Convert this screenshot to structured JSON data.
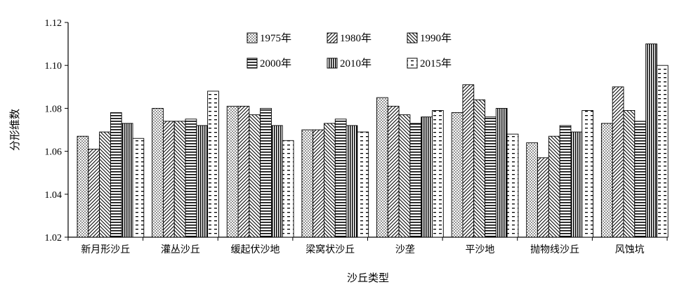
{
  "chart_data": {
    "type": "bar",
    "xlabel": "沙丘类型",
    "ylabel": "分形维数",
    "ylim": [
      1.02,
      1.12
    ],
    "yticks": [
      "1.02",
      "1.04",
      "1.06",
      "1.08",
      "1.10",
      "1.12"
    ],
    "grid": false,
    "legend_position": "top-center",
    "categories": [
      "新月形沙丘",
      "灌丛沙丘",
      "缓起伏沙地",
      "梁窝状沙丘",
      "沙垄",
      "平沙地",
      "抛物线沙丘",
      "风蚀坑"
    ],
    "series": [
      {
        "name": "1975年",
        "pattern": "dots",
        "values": [
          1.067,
          1.08,
          1.081,
          1.07,
          1.085,
          1.078,
          1.064,
          1.073
        ]
      },
      {
        "name": "1980年",
        "pattern": "diag-up",
        "values": [
          1.061,
          1.074,
          1.081,
          1.07,
          1.081,
          1.091,
          1.057,
          1.09
        ]
      },
      {
        "name": "1990年",
        "pattern": "diag-down",
        "values": [
          1.069,
          1.074,
          1.077,
          1.073,
          1.077,
          1.084,
          1.067,
          1.079
        ]
      },
      {
        "name": "2000年",
        "pattern": "horizontal",
        "values": [
          1.078,
          1.075,
          1.08,
          1.075,
          1.073,
          1.076,
          1.072,
          1.074
        ]
      },
      {
        "name": "2010年",
        "pattern": "vertical",
        "values": [
          1.073,
          1.072,
          1.072,
          1.072,
          1.076,
          1.08,
          1.069,
          1.11
        ]
      },
      {
        "name": "2015年",
        "pattern": "dashes",
        "values": [
          1.066,
          1.088,
          1.065,
          1.069,
          1.079,
          1.068,
          1.079,
          1.1
        ]
      }
    ]
  }
}
